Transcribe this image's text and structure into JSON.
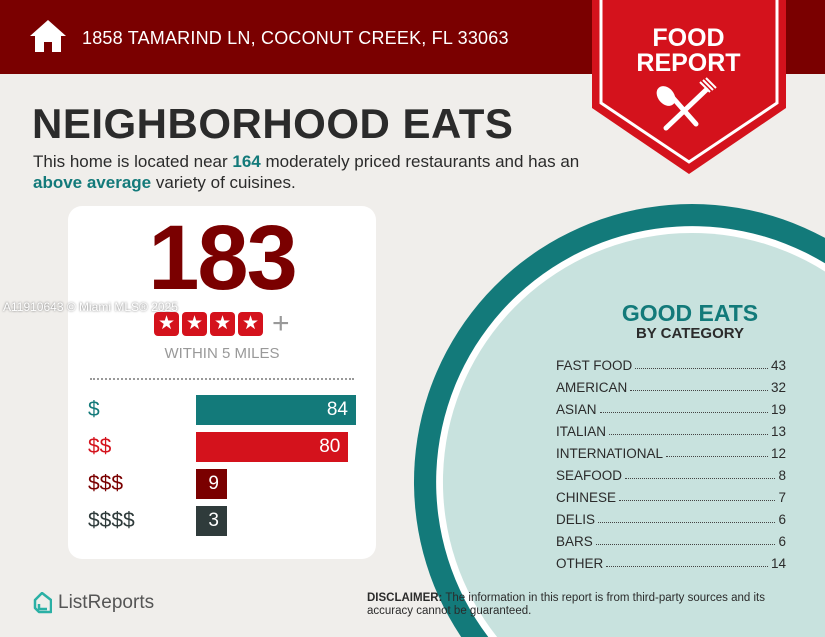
{
  "header": {
    "address": "1858 TAMARIND LN, COCONUT CREEK, FL 33063",
    "icon": "home-icon"
  },
  "banner": {
    "line1": "FOOD",
    "line2": "REPORT",
    "icon": "utensils-icon"
  },
  "title": "NEIGHBORHOOD EATS",
  "intro": {
    "p1": "This home is located near ",
    "count": "164",
    "p2": " moderately priced restaurants and has an ",
    "variety": "above average",
    "p3": " variety of cuisines."
  },
  "summary": {
    "total": "183",
    "rating_stars": 4,
    "rating_suffix": "+",
    "within": "WITHIN 5 MILES"
  },
  "price_levels": [
    {
      "label": "$",
      "value": 84,
      "color": "#137a7a"
    },
    {
      "label": "$$",
      "value": 80,
      "color": "#d4121c"
    },
    {
      "label": "$$$",
      "value": 9,
      "color": "#7a0000"
    },
    {
      "label": "$$$$",
      "value": 3,
      "color": "#2f3b3b"
    }
  ],
  "watermark": "A11910643 © Miami MLS® 2025",
  "good_eats": {
    "title": "GOOD EATS",
    "subtitle": "BY CATEGORY",
    "categories": [
      {
        "name": "FAST FOOD",
        "count": "43"
      },
      {
        "name": "AMERICAN",
        "count": "32"
      },
      {
        "name": "ASIAN",
        "count": "19"
      },
      {
        "name": "ITALIAN",
        "count": "13"
      },
      {
        "name": "INTERNATIONAL",
        "count": "12"
      },
      {
        "name": "SEAFOOD",
        "count": "8"
      },
      {
        "name": "CHINESE",
        "count": "7"
      },
      {
        "name": "DELIS",
        "count": "6"
      },
      {
        "name": "BARS",
        "count": "6"
      },
      {
        "name": "OTHER",
        "count": "14"
      }
    ]
  },
  "footer": {
    "logo": "ListReports",
    "disclaimer_label": "DISCLAIMER:",
    "disclaimer": " The information in this report is from third-party sources and its accuracy cannot be guaranteed."
  },
  "colors": {
    "dark_red": "#7a0000",
    "red": "#d4121c",
    "teal": "#137a7a",
    "light_teal": "#c8e2de"
  }
}
